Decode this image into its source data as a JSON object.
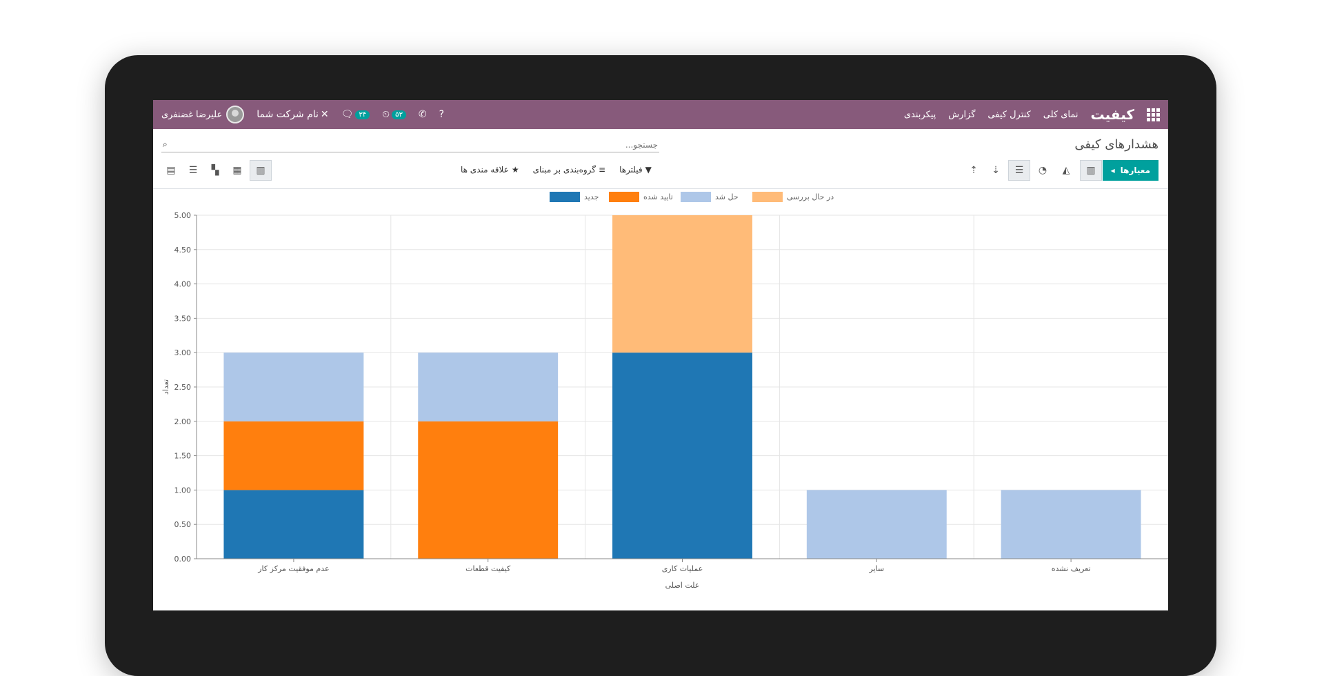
{
  "navbar": {
    "brand": "کیفیت",
    "menu": [
      "نمای کلی",
      "کنترل کیفی",
      "گزارش",
      "پیکربندی"
    ],
    "user_name": "علیرضا غضنفری",
    "company": "نام شرکت شما",
    "messages_count": "۳۴",
    "activities_count": "۵۳"
  },
  "control_panel": {
    "title": "هشدارهای کیفی",
    "search_placeholder": "جستجو...",
    "measures_label": "معیارها",
    "filters_label": "فیلترها",
    "groupby_label": "گروه‌بندی بر مبنای",
    "favorites_label": "علاقه مندی ها"
  },
  "chart_data": {
    "type": "bar",
    "stacked": true,
    "categories": [
      "عدم موفقیت مرکز کار",
      "کیفیت قطعات",
      "عملیات کاری",
      "سایر",
      "تعریف نشده"
    ],
    "series": [
      {
        "name": "جدید",
        "color": "#1f77b4",
        "values": [
          1,
          0,
          3,
          0,
          0
        ]
      },
      {
        "name": "تایید شده",
        "color": "#ff7f0e",
        "values": [
          1,
          2,
          0,
          0,
          0
        ]
      },
      {
        "name": "حل شد",
        "color": "#aec7e8",
        "values": [
          1,
          1,
          0,
          1,
          1
        ]
      },
      {
        "name": "در حال بررسی",
        "color": "#ffbb78",
        "values": [
          0,
          0,
          2,
          0,
          0
        ]
      }
    ],
    "xlabel": "علت اصلی",
    "ylabel": "تعداد",
    "ylim": [
      0,
      5
    ],
    "yticks": [
      "0.00",
      "0.50",
      "1.00",
      "1.50",
      "2.00",
      "2.50",
      "3.00",
      "3.50",
      "4.00",
      "4.50",
      "5.00"
    ],
    "grid": true,
    "legend": "top"
  }
}
